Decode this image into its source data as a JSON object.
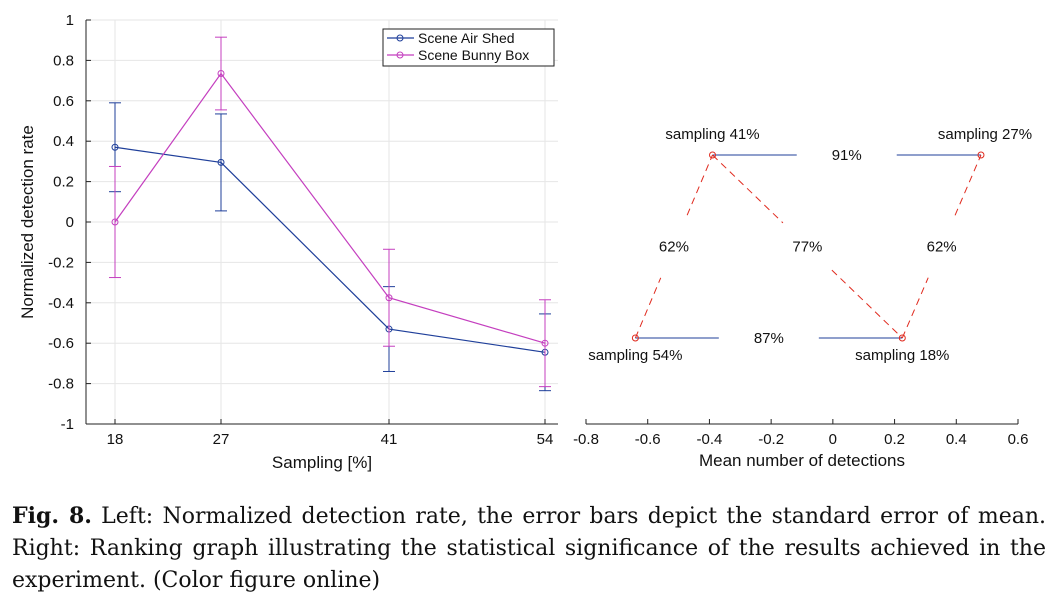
{
  "chart_data": [
    {
      "type": "line",
      "x_categories": [
        "18",
        "27",
        "41",
        "54"
      ],
      "x": [
        18,
        27,
        41,
        54
      ],
      "xlabel": "Sampling [%]",
      "ylabel": "Normalized detection rate",
      "ylim": [
        -1,
        1
      ],
      "yticks": [
        "-1",
        "-0.8",
        "-0.6",
        "-0.4",
        "-0.2",
        "0",
        "0.2",
        "0.4",
        "0.6",
        "0.8",
        "1"
      ],
      "grid": true,
      "legend_position": "top-right",
      "series": [
        {
          "name": "Scene Air Shed",
          "color": "#1f3f9a",
          "y": [
            0.37,
            0.295,
            -0.53,
            -0.645
          ],
          "error": [
            0.22,
            0.24,
            0.21,
            0.19
          ]
        },
        {
          "name": "Scene Bunny Box",
          "color": "#c43fbf",
          "y": [
            0.0,
            0.735,
            -0.375,
            -0.6
          ],
          "error": [
            0.275,
            0.18,
            0.24,
            0.215
          ]
        }
      ]
    },
    {
      "type": "graph",
      "xlabel": "Mean number of detections",
      "xlim": [
        -0.8,
        0.6
      ],
      "xticks": [
        "-0.8",
        "-0.6",
        "-0.4",
        "-0.2",
        "0",
        "0.2",
        "0.4",
        "0.6"
      ],
      "nodes": [
        {
          "label": "sampling 41%",
          "x": -0.39
        },
        {
          "label": "sampling 27%",
          "x": 0.48
        },
        {
          "label": "sampling 54%",
          "x": -0.64
        },
        {
          "label": "sampling 18%",
          "x": 0.225
        }
      ],
      "edges": [
        {
          "from": "sampling 41%",
          "to": "sampling 27%",
          "label": "91%",
          "style": "solid",
          "color": "#1f3f9a"
        },
        {
          "from": "sampling 54%",
          "to": "sampling 18%",
          "label": "87%",
          "style": "solid",
          "color": "#1f3f9a"
        },
        {
          "from": "sampling 54%",
          "to": "sampling 41%",
          "label": "62%",
          "style": "dashed",
          "color": "#e02a1e"
        },
        {
          "from": "sampling 41%",
          "to": "sampling 18%",
          "label": "77%",
          "style": "dashed",
          "color": "#e02a1e"
        },
        {
          "from": "sampling 18%",
          "to": "sampling 27%",
          "label": "62%",
          "style": "dashed",
          "color": "#e02a1e"
        }
      ]
    }
  ],
  "caption": {
    "label": "Fig. 8.",
    "text": " Left: Normalized detection rate, the error bars depict the standard error of mean. Right: Ranking graph illustrating the statistical significance of the results achieved in the experiment. (Color figure online)"
  }
}
